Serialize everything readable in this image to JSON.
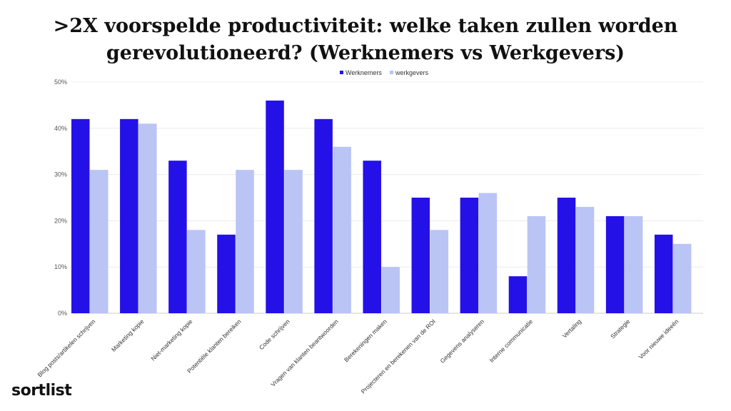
{
  "title_line1": ">2X voorspelde productiviteit: welke taken zullen worden",
  "title_line2": "gerevolutioneerd? (Werknemers vs Werkgevers)",
  "logo_text": "sortlist",
  "chart_data": {
    "type": "bar",
    "categories": [
      "Blog posts/artikelen schrijven",
      "Marketing kopie",
      "Niet-marketing kopie",
      "Potentiële klanten bereiken",
      "Code schrijven",
      "Vragen van klanten beantwoorden",
      "Berekeningen maken",
      "Projecteren en berekenen van de ROI",
      "Gegevens analyseren",
      "Interne communicatie",
      "Vertaling",
      "Strategie",
      "Voor nieuwe ideeën"
    ],
    "series": [
      {
        "name": "Werknemers",
        "color": "#2411e8",
        "values": [
          42,
          42,
          33,
          17,
          46,
          42,
          33,
          25,
          25,
          8,
          25,
          21,
          17
        ]
      },
      {
        "name": "werkgevers",
        "color": "#bac4f5",
        "values": [
          31,
          41,
          18,
          31,
          31,
          36,
          10,
          18,
          26,
          21,
          23,
          21,
          15
        ]
      }
    ],
    "ylim": [
      0,
      50
    ],
    "yticks": [
      "0%",
      "10%",
      "20%",
      "30%",
      "40%",
      "50%"
    ],
    "grid": true,
    "legend": "top-center"
  }
}
